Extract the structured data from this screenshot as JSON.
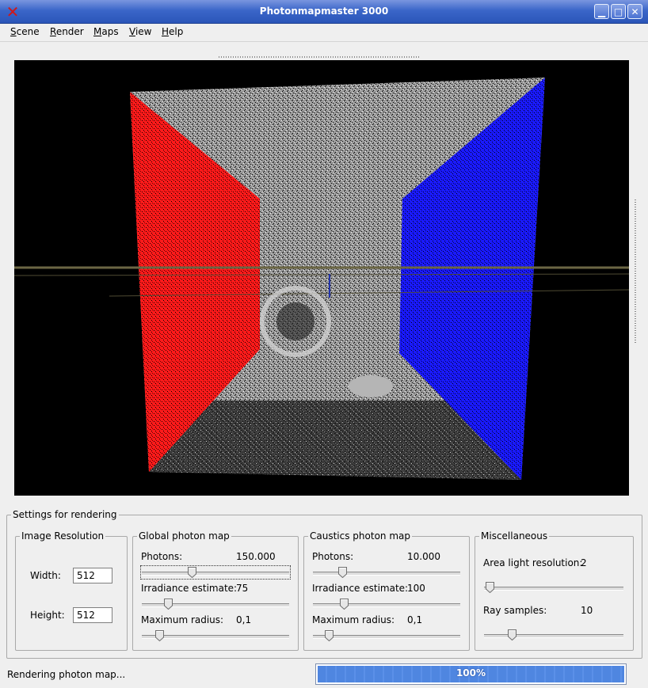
{
  "window": {
    "title": "Photonmapmaster 3000",
    "icon": "x-app-icon"
  },
  "window_controls": {
    "minimize": "▁",
    "maximize": "□",
    "close": "✕"
  },
  "menu": [
    {
      "accel": "S",
      "rest": "cene"
    },
    {
      "accel": "R",
      "rest": "ender"
    },
    {
      "accel": "M",
      "rest": "aps"
    },
    {
      "accel": "V",
      "rest": "iew"
    },
    {
      "accel": "H",
      "rest": "elp"
    }
  ],
  "settings": {
    "title": "Settings for rendering",
    "image_resolution": {
      "title": "Image Resolution",
      "width_label": "Width:",
      "width_value": "512",
      "height_label": "Height:",
      "height_value": "512"
    },
    "global": {
      "title": "Global photon map",
      "photons_label": "Photons:",
      "photons_value": "150.000",
      "photons_pos": 0.34,
      "irradiance_label": "Irradiance estimate:",
      "irradiance_value": "75",
      "irradiance_pos": 0.18,
      "radius_label": "Maximum radius:",
      "radius_value": "0,1",
      "radius_pos": 0.12
    },
    "caustics": {
      "title": "Caustics photon map",
      "photons_label": "Photons:",
      "photons_value": "10.000",
      "photons_pos": 0.2,
      "irradiance_label": "Irradiance estimate:",
      "irradiance_value": "100",
      "irradiance_pos": 0.21,
      "radius_label": "Maximum radius:",
      "radius_value": "0,1",
      "radius_pos": 0.11
    },
    "misc": {
      "title": "Miscellaneous",
      "area_label": "Area light resolution:",
      "area_value": "2",
      "area_pos": 0.04,
      "ray_label": "Ray samples:",
      "ray_value": "10",
      "ray_pos": 0.2
    }
  },
  "status": {
    "text": "Rendering photon map...",
    "progress": 100,
    "progress_text": "100%"
  },
  "colors": {
    "title_bar": "#3b66c9",
    "left_wall": "#ff1a1a",
    "right_wall": "#1a1aff",
    "progress": "#4f86e0"
  }
}
